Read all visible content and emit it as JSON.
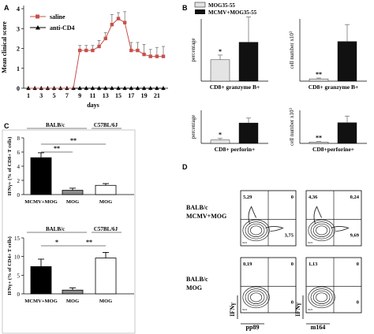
{
  "panels": {
    "A": "A",
    "B": "B",
    "C": "C",
    "D": "D"
  },
  "colors": {
    "saline": "#c8504b",
    "anti_cd4": "#000000",
    "mog35": "#e4e4e4",
    "mcmv_mog35": "#111111",
    "mog_bar": "#8a8a8a",
    "mog_white": "#ffffff"
  },
  "chart_data": [
    {
      "panel": "A",
      "type": "line",
      "xlabel": "days",
      "ylabel": "Mean clinical score",
      "ylim": [
        0,
        4
      ],
      "yticks": [
        "0",
        "1",
        "2",
        "3",
        "4"
      ],
      "xticks": [
        "1",
        "3",
        "5",
        "7",
        "9",
        "11",
        "13",
        "15",
        "17",
        "19",
        "21"
      ],
      "x": [
        1,
        2,
        3,
        4,
        5,
        6,
        7,
        8,
        9,
        10,
        11,
        12,
        13,
        14,
        15,
        16,
        17,
        18,
        19,
        20,
        21,
        22
      ],
      "series": [
        {
          "name": "saline",
          "values": [
            0,
            0,
            0,
            0,
            0,
            0,
            0,
            0,
            1.9,
            1.9,
            1.9,
            2.1,
            2.5,
            3.2,
            3.5,
            3.3,
            1.9,
            1.9,
            1.7,
            1.6,
            1.6,
            1.6
          ],
          "err": [
            0,
            0,
            0,
            0,
            0,
            0,
            0,
            0,
            0.25,
            0.25,
            0.25,
            0.3,
            0.3,
            0.5,
            0.3,
            0.55,
            0.4,
            0.4,
            0.5,
            0.35,
            0.45,
            0.5
          ]
        },
        {
          "name": "anti-CD4",
          "values": [
            0,
            0,
            0,
            0,
            0,
            0,
            0,
            0,
            0,
            0,
            0,
            0,
            0,
            0,
            0,
            0,
            0,
            0,
            0,
            0,
            0,
            0
          ],
          "err": []
        }
      ],
      "legend": "top-left"
    },
    {
      "panel": "B1",
      "type": "bar",
      "title": "",
      "xlabel": "CD8+ granzyme B+",
      "ylabel": "percentage",
      "categories": [
        "MOG35-55",
        "MCMV+MOG35-55"
      ],
      "values": [
        0.55,
        1.0
      ],
      "err": [
        0.12,
        0.65
      ],
      "ylim": [
        0,
        1.6
      ],
      "annotations": [
        "*"
      ],
      "legend_entries": [
        "MOG35-55",
        "MCMV+MOG35-55"
      ]
    },
    {
      "panel": "B2",
      "type": "bar",
      "xlabel": "CD8+ granzyme B+",
      "ylabel": "cell number x10",
      "ylabel_exp": "3",
      "categories": [
        "MOG35-55",
        "MCMV+MOG35-55"
      ],
      "values": [
        0.8,
        14
      ],
      "err": [
        0.3,
        6
      ],
      "ylim": [
        0,
        22
      ],
      "annotations": [
        "**"
      ]
    },
    {
      "panel": "B3",
      "type": "bar",
      "xlabel": "CD8+ perforin+",
      "ylabel": "percentage",
      "categories": [
        "MOG35-55",
        "MCMV+MOG35-55"
      ],
      "values": [
        0.3,
        1.85
      ],
      "err": [
        0.15,
        0.45
      ],
      "ylim": [
        0,
        3
      ],
      "annotations": [
        "*"
      ]
    },
    {
      "panel": "B4",
      "type": "bar",
      "xlabel": "CD8+perforine+",
      "ylabel": "cell number x10",
      "ylabel_exp": "3",
      "categories": [
        "MOG35-55",
        "MCMV+MOG35-55"
      ],
      "values": [
        0.8,
        12.5
      ],
      "err": [
        0.3,
        4
      ],
      "ylim": [
        0,
        20
      ],
      "annotations": [
        "**"
      ]
    },
    {
      "panel": "C1",
      "type": "bar",
      "ylabel": "IFNγ+ (% of CD8+ T cells)",
      "categories": [
        "MCMV+MOG",
        "MOG",
        "MOG"
      ],
      "groups": [
        "BALB/c",
        "C57BL/6J"
      ],
      "values": [
        5.2,
        0.6,
        1.3
      ],
      "err": [
        0.7,
        0.3,
        0.25
      ],
      "ylim": [
        0,
        8
      ],
      "yticks": [
        "0",
        "2",
        "4",
        "6",
        "8"
      ],
      "annotations": [
        "**",
        "**"
      ]
    },
    {
      "panel": "C2",
      "type": "bar",
      "ylabel": "IFNγ+ (% of CD4+ T cells)",
      "categories": [
        "MCMV+MOG",
        "MOG",
        "MOG"
      ],
      "groups": [
        "BALB/c",
        "C57BL/6J"
      ],
      "values": [
        7.3,
        1.0,
        9.6
      ],
      "err": [
        2.0,
        0.6,
        1.5
      ],
      "ylim": [
        0,
        15
      ],
      "yticks": [
        "0",
        "5",
        "10",
        "15"
      ],
      "annotations": [
        "*",
        "**"
      ]
    }
  ],
  "legendA": {
    "saline": "saline",
    "anticd4": "anti-CD4"
  },
  "legendB": {
    "mog": "MOG35-55",
    "mcmv": "MCMV+MOG35-55"
  },
  "flow": {
    "row1_label": [
      "BALB/c",
      "MCMV+MOG"
    ],
    "row2_label": [
      "BALB/c",
      "MOG"
    ],
    "yaxis": "IFNγ",
    "xaxis_left": "pp89",
    "xaxis_right": "m164",
    "quadrants": [
      {
        "tl": "5,29",
        "tr": "0",
        "br": "3,75"
      },
      {
        "tl": "4,36",
        "tr": "0,24",
        "br": "9,69"
      },
      {
        "tl": "0,19",
        "tr": "0",
        "br": "0"
      },
      {
        "tl": "1,13",
        "tr": "0",
        "br": "0"
      }
    ],
    "corner": "94,9"
  }
}
